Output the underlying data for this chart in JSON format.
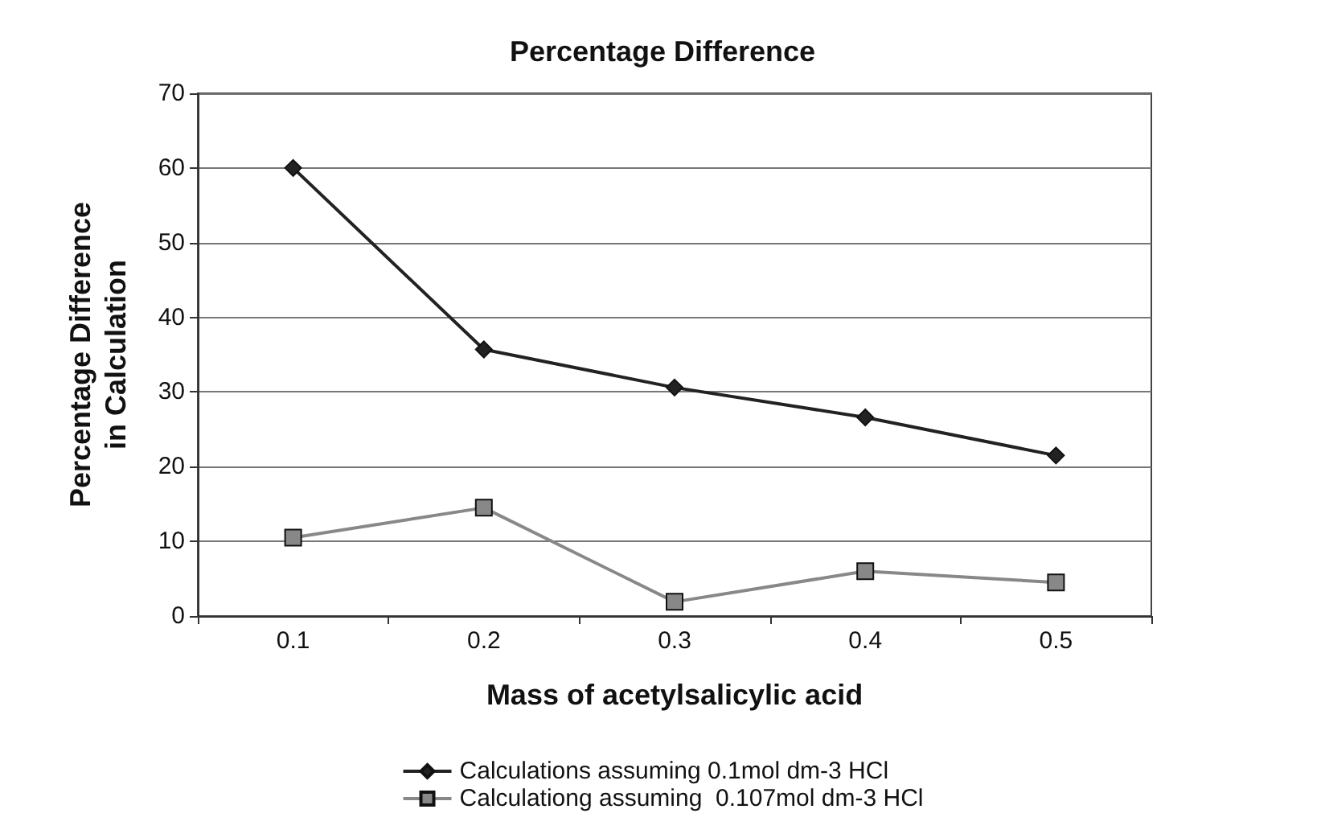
{
  "chart_data": {
    "type": "line",
    "title": "Percentage Difference",
    "xlabel": "Mass of acetylsalicylic acid",
    "ylabel": "Percentage Difference\nin Calculation",
    "categories": [
      "0.1",
      "0.2",
      "0.3",
      "0.4",
      "0.5"
    ],
    "series": [
      {
        "name": "Calculations assuming 0.1mol dm-3 HCl",
        "color": "#222222",
        "marker": "diamond",
        "values": [
          60,
          35.7,
          30.6,
          26.6,
          21.5
        ]
      },
      {
        "name": "Calculationg assuming  0.107mol dm-3 HCl",
        "color": "#888888",
        "marker": "square",
        "values": [
          10.5,
          14.5,
          1.9,
          6,
          4.5
        ]
      }
    ],
    "ylim": [
      0,
      70
    ],
    "yticks": [
      0,
      10,
      20,
      30,
      40,
      50,
      60,
      70
    ],
    "grid": "y",
    "legend": "bottom"
  }
}
